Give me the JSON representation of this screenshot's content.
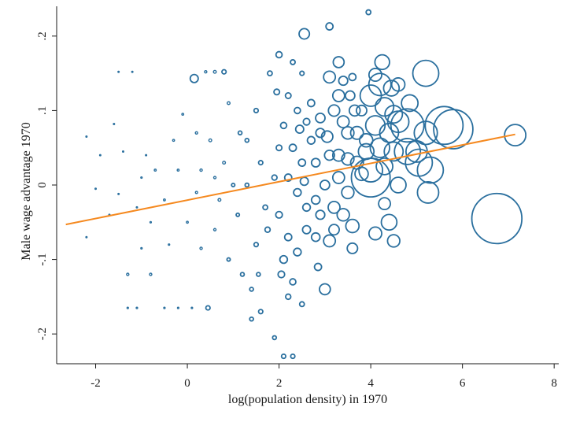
{
  "chart_data": {
    "type": "scatter",
    "title": "",
    "xlabel": "log(population density) in 1970",
    "ylabel": "Male wage advantage 1970",
    "xlim": [
      -2.85,
      8.1
    ],
    "ylim": [
      -0.24,
      0.24
    ],
    "xticks": [
      -2,
      0,
      2,
      4,
      6,
      8
    ],
    "xtick_labels": [
      "-2",
      "0",
      "2",
      "4",
      "6",
      "8"
    ],
    "yticks": [
      -0.2,
      -0.1,
      0,
      0.1,
      0.2
    ],
    "ytick_labels": [
      "-.2",
      "-.1",
      "0",
      ".1",
      ".2"
    ],
    "marker_color": "#2a6f9e",
    "fit_color": "#f5891f",
    "fit_line": {
      "x": [
        -2.65,
        7.15
      ],
      "y": [
        -0.053,
        0.068
      ]
    },
    "marker_size_note": "hollow circles, size proportional to weight",
    "points": [
      {
        "x": -1.5,
        "y": 0.152,
        "s": 0.3
      },
      {
        "x": -1.2,
        "y": 0.152,
        "s": 0.3
      },
      {
        "x": -2.2,
        "y": 0.065,
        "s": 0.3
      },
      {
        "x": -1.9,
        "y": 0.04,
        "s": 0.3
      },
      {
        "x": -1.6,
        "y": 0.082,
        "s": 0.3
      },
      {
        "x": -2.0,
        "y": -0.005,
        "s": 0.3
      },
      {
        "x": -1.4,
        "y": 0.045,
        "s": 0.3
      },
      {
        "x": -1.1,
        "y": -0.03,
        "s": 0.3
      },
      {
        "x": -2.2,
        "y": -0.07,
        "s": 0.3
      },
      {
        "x": -1.7,
        "y": -0.04,
        "s": 0.3
      },
      {
        "x": -1.5,
        "y": -0.012,
        "s": 0.3
      },
      {
        "x": -0.9,
        "y": 0.04,
        "s": 0.3
      },
      {
        "x": -1.3,
        "y": -0.12,
        "s": 1.0
      },
      {
        "x": -0.8,
        "y": -0.12,
        "s": 1.0
      },
      {
        "x": -1.3,
        "y": -0.165,
        "s": 0.6
      },
      {
        "x": -1.1,
        "y": -0.165,
        "s": 0.6
      },
      {
        "x": -0.5,
        "y": -0.165,
        "s": 0.6
      },
      {
        "x": -0.2,
        "y": -0.165,
        "s": 0.6
      },
      {
        "x": 0.1,
        "y": -0.165,
        "s": 0.6
      },
      {
        "x": 0.45,
        "y": -0.165,
        "s": 1.8
      },
      {
        "x": -1.0,
        "y": 0.01,
        "s": 0.6
      },
      {
        "x": -0.7,
        "y": 0.02,
        "s": 0.8
      },
      {
        "x": -0.5,
        "y": -0.02,
        "s": 0.8
      },
      {
        "x": -0.3,
        "y": 0.06,
        "s": 0.8
      },
      {
        "x": -0.1,
        "y": 0.095,
        "s": 0.8
      },
      {
        "x": 0.2,
        "y": 0.07,
        "s": 1.0
      },
      {
        "x": -0.8,
        "y": -0.05,
        "s": 0.6
      },
      {
        "x": -0.4,
        "y": -0.08,
        "s": 0.6
      },
      {
        "x": 0.0,
        "y": -0.05,
        "s": 0.8
      },
      {
        "x": 0.3,
        "y": -0.085,
        "s": 1.0
      },
      {
        "x": 0.6,
        "y": -0.06,
        "s": 1.0
      },
      {
        "x": -1.0,
        "y": -0.085,
        "s": 0.6
      },
      {
        "x": 0.9,
        "y": 0.11,
        "s": 1.2
      },
      {
        "x": 0.4,
        "y": 0.152,
        "s": 1.0
      },
      {
        "x": 0.6,
        "y": 0.152,
        "s": 1.2
      },
      {
        "x": 0.8,
        "y": 0.152,
        "s": 1.8
      },
      {
        "x": 0.15,
        "y": 0.143,
        "s": 3.4
      },
      {
        "x": 0.5,
        "y": 0.06,
        "s": 1.2
      },
      {
        "x": 0.8,
        "y": 0.03,
        "s": 1.2
      },
      {
        "x": 1.0,
        "y": 0.0,
        "s": 1.4
      },
      {
        "x": 0.3,
        "y": 0.02,
        "s": 1.0
      },
      {
        "x": 0.7,
        "y": -0.02,
        "s": 1.2
      },
      {
        "x": 1.1,
        "y": -0.04,
        "s": 1.4
      },
      {
        "x": 0.9,
        "y": -0.1,
        "s": 1.4
      },
      {
        "x": 1.2,
        "y": -0.12,
        "s": 1.6
      },
      {
        "x": 1.4,
        "y": -0.14,
        "s": 1.6
      },
      {
        "x": 1.6,
        "y": -0.17,
        "s": 1.8
      },
      {
        "x": 1.3,
        "y": 0.06,
        "s": 1.6
      },
      {
        "x": 1.5,
        "y": 0.1,
        "s": 1.8
      },
      {
        "x": 1.6,
        "y": 0.03,
        "s": 1.8
      },
      {
        "x": 1.8,
        "y": 0.15,
        "s": 2.0
      },
      {
        "x": 1.5,
        "y": -0.08,
        "s": 1.8
      },
      {
        "x": 1.4,
        "y": -0.18,
        "s": 1.6
      },
      {
        "x": 1.9,
        "y": -0.205,
        "s": 1.6
      },
      {
        "x": 2.1,
        "y": -0.23,
        "s": 1.8
      },
      {
        "x": 2.3,
        "y": -0.23,
        "s": 1.8
      },
      {
        "x": 1.3,
        "y": 0.0,
        "s": 1.6
      },
      {
        "x": 1.7,
        "y": -0.03,
        "s": 2.0
      },
      {
        "x": 1.9,
        "y": 0.01,
        "s": 2.2
      },
      {
        "x": 2.0,
        "y": 0.05,
        "s": 2.4
      },
      {
        "x": 2.0,
        "y": 0.175,
        "s": 2.6
      },
      {
        "x": 2.3,
        "y": 0.165,
        "s": 2.0
      },
      {
        "x": 2.5,
        "y": 0.15,
        "s": 1.8
      },
      {
        "x": 2.2,
        "y": 0.12,
        "s": 2.4
      },
      {
        "x": 2.4,
        "y": 0.1,
        "s": 2.6
      },
      {
        "x": 2.6,
        "y": 0.085,
        "s": 2.8
      },
      {
        "x": 2.1,
        "y": 0.08,
        "s": 2.6
      },
      {
        "x": 2.3,
        "y": 0.05,
        "s": 3.0
      },
      {
        "x": 2.5,
        "y": 0.03,
        "s": 3.0
      },
      {
        "x": 2.7,
        "y": 0.06,
        "s": 3.2
      },
      {
        "x": 2.2,
        "y": 0.01,
        "s": 3.0
      },
      {
        "x": 2.4,
        "y": -0.01,
        "s": 3.2
      },
      {
        "x": 2.6,
        "y": -0.03,
        "s": 3.2
      },
      {
        "x": 2.0,
        "y": -0.04,
        "s": 2.8
      },
      {
        "x": 2.2,
        "y": -0.07,
        "s": 3.0
      },
      {
        "x": 2.4,
        "y": -0.09,
        "s": 3.2
      },
      {
        "x": 2.6,
        "y": -0.06,
        "s": 3.4
      },
      {
        "x": 2.8,
        "y": -0.07,
        "s": 3.6
      },
      {
        "x": 2.1,
        "y": -0.1,
        "s": 3.2
      },
      {
        "x": 2.3,
        "y": -0.13,
        "s": 2.6
      },
      {
        "x": 2.5,
        "y": -0.16,
        "s": 2.0
      },
      {
        "x": 2.2,
        "y": -0.15,
        "s": 2.2
      },
      {
        "x": 2.8,
        "y": 0.03,
        "s": 3.6
      },
      {
        "x": 2.9,
        "y": 0.07,
        "s": 3.8
      },
      {
        "x": 2.8,
        "y": -0.02,
        "s": 3.6
      },
      {
        "x": 3.0,
        "y": 0.0,
        "s": 4.0
      },
      {
        "x": 3.1,
        "y": 0.04,
        "s": 4.2
      },
      {
        "x": 2.9,
        "y": -0.04,
        "s": 3.8
      },
      {
        "x": 2.55,
        "y": 0.203,
        "s": 4.4
      },
      {
        "x": 3.1,
        "y": 0.213,
        "s": 3.0
      },
      {
        "x": 3.3,
        "y": 0.165,
        "s": 4.6
      },
      {
        "x": 3.1,
        "y": 0.145,
        "s": 5.0
      },
      {
        "x": 3.3,
        "y": 0.12,
        "s": 5.0
      },
      {
        "x": 3.2,
        "y": 0.1,
        "s": 4.8
      },
      {
        "x": 3.4,
        "y": 0.085,
        "s": 5.0
      },
      {
        "x": 3.5,
        "y": 0.07,
        "s": 5.2
      },
      {
        "x": 3.7,
        "y": 0.07,
        "s": 5.4
      },
      {
        "x": 3.9,
        "y": 0.06,
        "s": 5.6
      },
      {
        "x": 3.3,
        "y": 0.04,
        "s": 5.0
      },
      {
        "x": 3.5,
        "y": 0.035,
        "s": 5.2
      },
      {
        "x": 3.7,
        "y": 0.03,
        "s": 5.4
      },
      {
        "x": 3.3,
        "y": 0.01,
        "s": 5.0
      },
      {
        "x": 3.5,
        "y": -0.01,
        "s": 5.2
      },
      {
        "x": 3.2,
        "y": -0.03,
        "s": 5.0
      },
      {
        "x": 3.4,
        "y": -0.04,
        "s": 5.2
      },
      {
        "x": 3.6,
        "y": -0.055,
        "s": 5.6
      },
      {
        "x": 3.1,
        "y": -0.075,
        "s": 5.0
      },
      {
        "x": 3.0,
        "y": -0.14,
        "s": 4.6
      },
      {
        "x": 3.6,
        "y": -0.085,
        "s": 4.4
      },
      {
        "x": 3.4,
        "y": 0.14,
        "s": 3.8
      },
      {
        "x": 3.6,
        "y": 0.145,
        "s": 3.0
      },
      {
        "x": 3.55,
        "y": 0.12,
        "s": 4.0
      },
      {
        "x": 3.8,
        "y": 0.1,
        "s": 4.4
      },
      {
        "x": 3.95,
        "y": 0.232,
        "s": 2.0
      },
      {
        "x": 4.25,
        "y": 0.165,
        "s": 6.2
      },
      {
        "x": 4.1,
        "y": 0.148,
        "s": 5.4
      },
      {
        "x": 4.2,
        "y": 0.135,
        "s": 9.4
      },
      {
        "x": 4.0,
        "y": 0.12,
        "s": 9.0
      },
      {
        "x": 4.45,
        "y": 0.13,
        "s": 6.6
      },
      {
        "x": 4.6,
        "y": 0.135,
        "s": 5.6
      },
      {
        "x": 4.3,
        "y": 0.105,
        "s": 7.8
      },
      {
        "x": 4.5,
        "y": 0.095,
        "s": 7.4
      },
      {
        "x": 4.1,
        "y": 0.08,
        "s": 8.2
      },
      {
        "x": 4.4,
        "y": 0.07,
        "s": 8.0
      },
      {
        "x": 4.6,
        "y": 0.085,
        "s": 9.0
      },
      {
        "x": 4.2,
        "y": 0.05,
        "s": 8.2
      },
      {
        "x": 4.5,
        "y": 0.045,
        "s": 8.0
      },
      {
        "x": 4.0,
        "y": 0.02,
        "s": 10.0
      },
      {
        "x": 4.0,
        "y": 0.01,
        "s": 16.4
      },
      {
        "x": 4.3,
        "y": 0.025,
        "s": 7.0
      },
      {
        "x": 4.6,
        "y": 0.0,
        "s": 6.6
      },
      {
        "x": 4.3,
        "y": -0.025,
        "s": 5.0
      },
      {
        "x": 4.4,
        "y": -0.05,
        "s": 6.6
      },
      {
        "x": 4.1,
        "y": -0.065,
        "s": 5.4
      },
      {
        "x": 4.5,
        "y": -0.075,
        "s": 5.2
      },
      {
        "x": 4.8,
        "y": 0.08,
        "s": 14.0
      },
      {
        "x": 4.8,
        "y": 0.045,
        "s": 11.0
      },
      {
        "x": 5.0,
        "y": 0.045,
        "s": 9.0
      },
      {
        "x": 5.2,
        "y": 0.15,
        "s": 11.0
      },
      {
        "x": 5.2,
        "y": 0.07,
        "s": 9.8
      },
      {
        "x": 5.05,
        "y": 0.03,
        "s": 11.4
      },
      {
        "x": 5.3,
        "y": 0.02,
        "s": 11.0
      },
      {
        "x": 5.25,
        "y": -0.01,
        "s": 9.0
      },
      {
        "x": 5.6,
        "y": 0.08,
        "s": 16.0
      },
      {
        "x": 5.8,
        "y": 0.075,
        "s": 16.6
      },
      {
        "x": 7.15,
        "y": 0.067,
        "s": 9.0
      },
      {
        "x": 6.75,
        "y": -0.045,
        "s": 21.2
      },
      {
        "x": 4.85,
        "y": 0.11,
        "s": 7.0
      },
      {
        "x": 3.8,
        "y": 0.015,
        "s": 5.6
      },
      {
        "x": 3.9,
        "y": 0.045,
        "s": 6.6
      },
      {
        "x": 2.7,
        "y": 0.11,
        "s": 3.0
      },
      {
        "x": 1.95,
        "y": 0.125,
        "s": 2.4
      },
      {
        "x": 2.9,
        "y": 0.09,
        "s": 4.0
      },
      {
        "x": 3.2,
        "y": -0.06,
        "s": 4.4
      },
      {
        "x": 1.15,
        "y": 0.07,
        "s": 1.6
      },
      {
        "x": 0.2,
        "y": -0.01,
        "s": 0.9
      },
      {
        "x": 0.6,
        "y": 0.01,
        "s": 1.0
      },
      {
        "x": -0.2,
        "y": 0.02,
        "s": 0.8
      },
      {
        "x": 2.85,
        "y": -0.11,
        "s": 3.0
      },
      {
        "x": 2.05,
        "y": -0.12,
        "s": 2.8
      },
      {
        "x": 1.75,
        "y": -0.06,
        "s": 2.2
      },
      {
        "x": 1.55,
        "y": -0.12,
        "s": 1.6
      },
      {
        "x": 2.55,
        "y": 0.005,
        "s": 3.4
      },
      {
        "x": 3.05,
        "y": 0.065,
        "s": 4.8
      },
      {
        "x": 3.65,
        "y": 0.1,
        "s": 4.6
      },
      {
        "x": 2.45,
        "y": 0.075,
        "s": 3.4
      }
    ]
  }
}
